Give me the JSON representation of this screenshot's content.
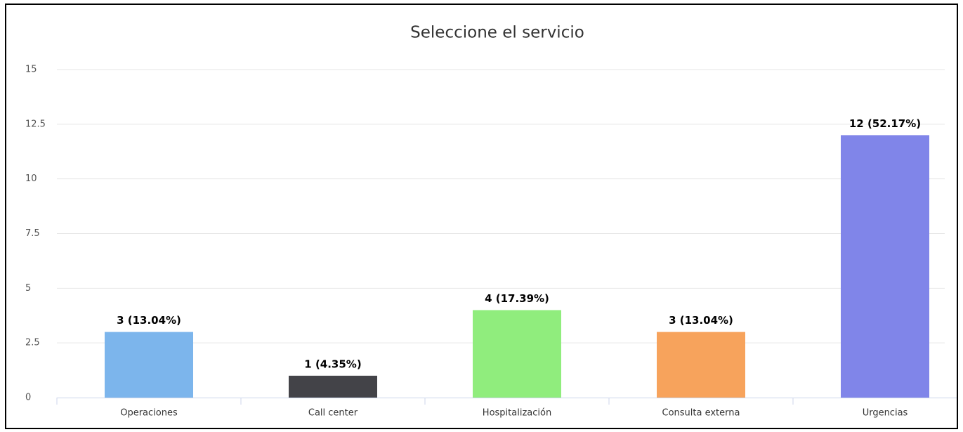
{
  "chart_data": {
    "type": "bar",
    "title": "Seleccione el servicio",
    "categories": [
      "Operaciones",
      "Call center",
      "Hospitalización",
      "Consulta externa",
      "Urgencias"
    ],
    "values": [
      3,
      1,
      4,
      3,
      12
    ],
    "value_labels": [
      "3 (13.04%)",
      "1 (4.35%)",
      "4 (17.39%)",
      "3 (13.04%)",
      "12 (52.17%)"
    ],
    "colors": [
      "#7cb5ec",
      "#434348",
      "#90ed7d",
      "#f7a35c",
      "#8085e9"
    ],
    "ylim": [
      0,
      15
    ],
    "yticks": [
      0,
      2.5,
      5,
      7.5,
      10,
      12.5,
      15
    ],
    "grid": true
  }
}
